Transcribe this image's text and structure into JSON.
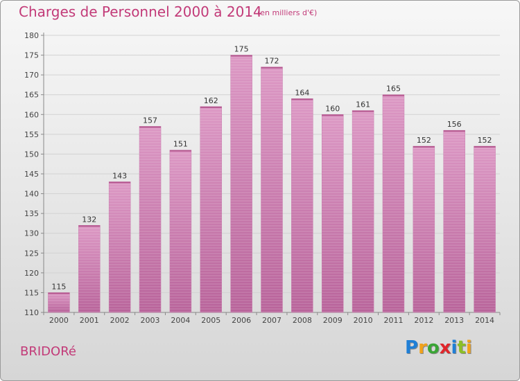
{
  "title": "Charges de Personnel 2000 à 2014",
  "subtitle": "(en milliers d'€)",
  "commune": "BRIDORé",
  "logo": {
    "letters": [
      {
        "char": "P",
        "color": "#1f7fd6"
      },
      {
        "char": "r",
        "color": "#f1a21a"
      },
      {
        "char": "o",
        "color": "#3aa535"
      },
      {
        "char": "x",
        "color": "#e0262b"
      },
      {
        "char": "i",
        "color": "#1f7fd6"
      },
      {
        "char": "t",
        "color": "#8cbf26"
      },
      {
        "char": "i",
        "color": "#f1a21a"
      }
    ]
  },
  "chart_data": {
    "type": "bar",
    "categories": [
      "2000",
      "2001",
      "2002",
      "2003",
      "2004",
      "2005",
      "2006",
      "2007",
      "2008",
      "2009",
      "2010",
      "2011",
      "2012",
      "2013",
      "2014"
    ],
    "values": [
      115,
      132,
      143,
      157,
      151,
      162,
      175,
      172,
      164,
      160,
      161,
      165,
      152,
      156,
      152
    ],
    "ylim": [
      110,
      180
    ],
    "yticks": [
      110,
      115,
      120,
      125,
      130,
      135,
      140,
      145,
      150,
      155,
      160,
      165,
      170,
      175,
      180
    ],
    "grid": true,
    "bar_color": "#dc98c4",
    "bar_color_dark": "#b8639a"
  }
}
